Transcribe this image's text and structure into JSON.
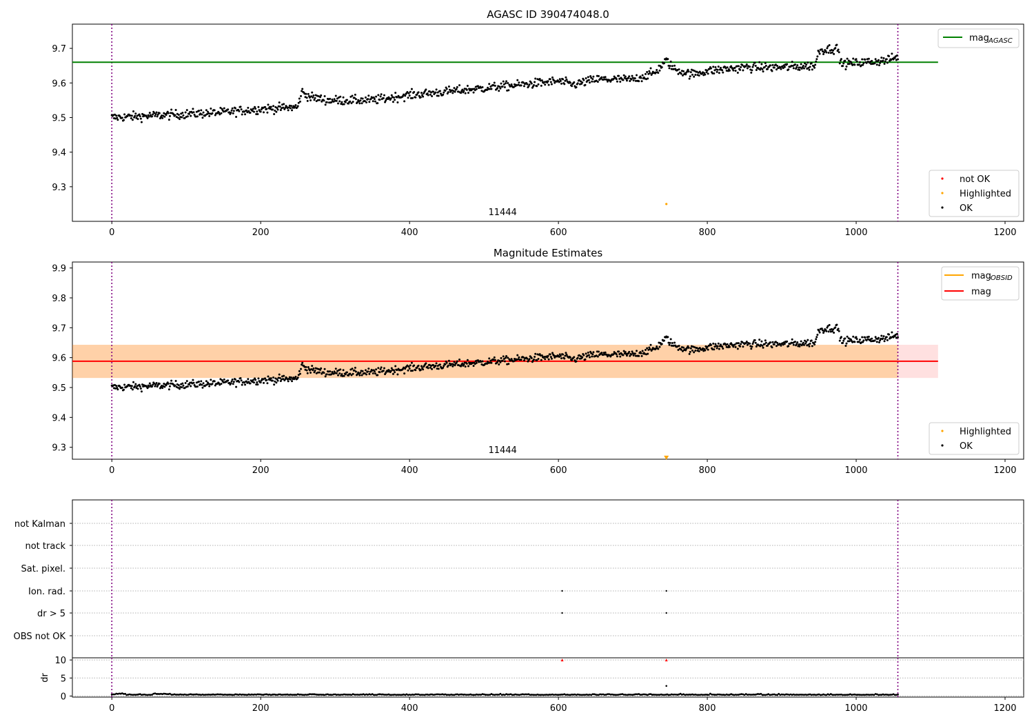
{
  "chart_data": [
    {
      "type": "scatter",
      "title": "AGASC ID 390474048.0",
      "xlabel": "",
      "ylabel": "",
      "xlim": [
        -53,
        1225
      ],
      "ylim": [
        9.2,
        9.77
      ],
      "xticks": [
        0,
        200,
        400,
        600,
        800,
        1000,
        1200
      ],
      "yticks": [
        9.3,
        9.4,
        9.5,
        9.6,
        9.7
      ],
      "x_tick_labels": [
        "0",
        "200",
        "400",
        "600",
        "800",
        "1000",
        "1200"
      ],
      "y_tick_labels": [
        "9.3",
        "9.4",
        "9.5",
        "9.6",
        "9.7"
      ],
      "obs_boundaries": [
        0,
        1056
      ],
      "obsid_label": "11444",
      "obsid_label_x": 525,
      "hlines": [
        {
          "name": "mag",
          "subscript": "AGASC",
          "y": 9.66,
          "x_range": [
            -53,
            1110
          ],
          "color": "#008000"
        }
      ],
      "legend_lines": [
        {
          "name": "mag",
          "subscript": "AGASC",
          "color": "#008000"
        }
      ],
      "legend_points": [
        {
          "name": "not OK",
          "color": "#ff0000"
        },
        {
          "name": "Highlighted",
          "color": "#ffa500"
        },
        {
          "name": "OK",
          "color": "#000000"
        }
      ],
      "trend": [
        [
          0,
          9.5
        ],
        [
          50,
          9.505
        ],
        [
          100,
          9.51
        ],
        [
          150,
          9.515
        ],
        [
          200,
          9.525
        ],
        [
          250,
          9.53
        ],
        [
          255,
          9.575
        ],
        [
          265,
          9.56
        ],
        [
          290,
          9.55
        ],
        [
          350,
          9.55
        ],
        [
          400,
          9.565
        ],
        [
          450,
          9.575
        ],
        [
          500,
          9.585
        ],
        [
          550,
          9.595
        ],
        [
          600,
          9.605
        ],
        [
          620,
          9.595
        ],
        [
          650,
          9.61
        ],
        [
          700,
          9.61
        ],
        [
          730,
          9.63
        ],
        [
          745,
          9.665
        ],
        [
          755,
          9.64
        ],
        [
          780,
          9.625
        ],
        [
          800,
          9.635
        ],
        [
          850,
          9.645
        ],
        [
          900,
          9.645
        ],
        [
          945,
          9.65
        ],
        [
          950,
          9.695
        ],
        [
          975,
          9.7
        ],
        [
          980,
          9.655
        ],
        [
          1000,
          9.658
        ],
        [
          1040,
          9.665
        ],
        [
          1056,
          9.675
        ]
      ],
      "highlighted": [
        {
          "x": 745,
          "y": 9.25
        }
      ]
    },
    {
      "type": "scatter",
      "title": "Magnitude Estimates",
      "xlabel": "",
      "ylabel": "",
      "xlim": [
        -53,
        1225
      ],
      "ylim": [
        9.26,
        9.92
      ],
      "xticks": [
        0,
        200,
        400,
        600,
        800,
        1000,
        1200
      ],
      "yticks": [
        9.3,
        9.4,
        9.5,
        9.6,
        9.7,
        9.8,
        9.9
      ],
      "x_tick_labels": [
        "0",
        "200",
        "400",
        "600",
        "800",
        "1000",
        "1200"
      ],
      "y_tick_labels": [
        "9.3",
        "9.4",
        "9.5",
        "9.6",
        "9.7",
        "9.8",
        "9.9"
      ],
      "obs_boundaries": [
        0,
        1056
      ],
      "obsid_label": "11444",
      "obsid_label_x": 525,
      "mag": 9.588,
      "mag_band": [
        9.532,
        9.643
      ],
      "obsid_band": [
        9.532,
        9.643
      ],
      "legend_lines": [
        {
          "name": "mag",
          "subscript": "OBSID",
          "color": "#ffa500"
        },
        {
          "name": "mag",
          "subscript": "",
          "color": "#ff0000"
        }
      ],
      "legend_points": [
        {
          "name": "Highlighted",
          "color": "#ffa500"
        },
        {
          "name": "OK",
          "color": "#000000"
        }
      ],
      "highlighted_marker": {
        "x": 745,
        "y": 9.265
      }
    },
    {
      "type": "scatter",
      "title": "",
      "xlim": [
        -53,
        1225
      ],
      "xticks": [
        0,
        200,
        400,
        600,
        800,
        1000,
        1200
      ],
      "x_tick_labels": [
        "0",
        "200",
        "400",
        "600",
        "800",
        "1000",
        "1200"
      ],
      "obs_boundaries": [
        0,
        1056
      ],
      "flag_rows": [
        "not Kalman",
        "not track",
        "Sat. pixel.",
        "Ion. rad.",
        "dr > 5",
        "OBS not OK"
      ],
      "flag_points": [
        {
          "flag": "Ion. rad.",
          "x": [
            605,
            745
          ]
        },
        {
          "flag": "dr > 5",
          "x": [
            605,
            745
          ]
        }
      ]
    },
    {
      "type": "line",
      "title": "",
      "ylabel": "dr",
      "xlim": [
        -53,
        1225
      ],
      "ylim": [
        -0.3,
        10.6
      ],
      "yticks": [
        0,
        5,
        10
      ],
      "y_tick_labels": [
        "0",
        "5",
        "10"
      ],
      "xticks": [
        0,
        200,
        400,
        600,
        800,
        1000,
        1200
      ],
      "x_tick_labels": [
        "0",
        "200",
        "400",
        "600",
        "800",
        "1000",
        "1200"
      ],
      "obs_boundaries": [
        0,
        1056
      ],
      "dr_baseline": 0.3,
      "outliers": [
        {
          "x": 745,
          "y": 2.8
        }
      ],
      "clipped": [
        {
          "x": 605,
          "y": 10
        },
        {
          "x": 745,
          "y": 10
        }
      ]
    }
  ]
}
